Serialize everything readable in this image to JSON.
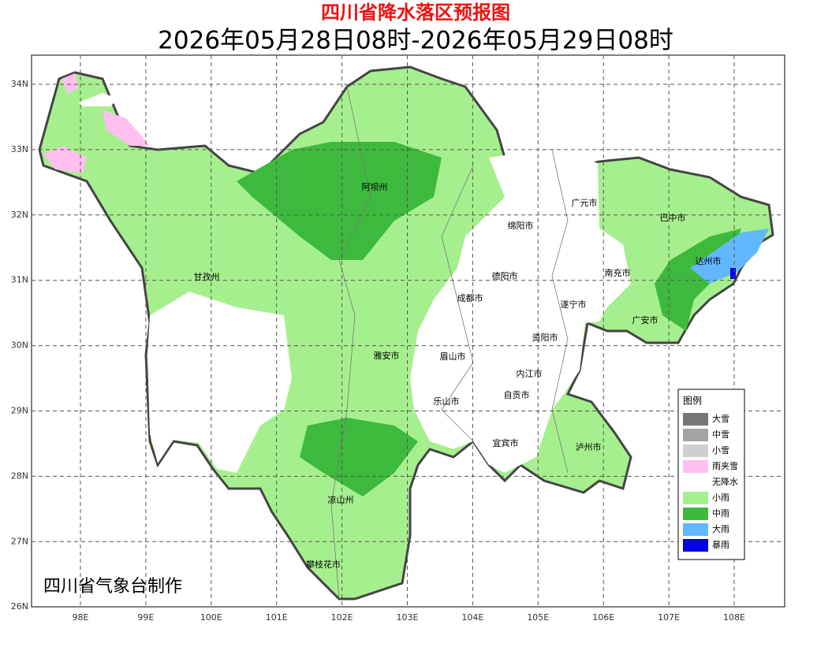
{
  "header": {
    "title": "四川省降水落区预报图",
    "subtitle": "2026年05月28日08时-2026年05月29日08时"
  },
  "map": {
    "lat_ticks": [
      "34N",
      "33N",
      "32N",
      "31N",
      "30N",
      "29N",
      "28N",
      "27N",
      "26N"
    ],
    "lon_ticks": [
      "98E",
      "99E",
      "100E",
      "101E",
      "102E",
      "103E",
      "104E",
      "105E",
      "106E",
      "107E",
      "108E"
    ],
    "places": [
      {
        "label": "阿坝州"
      },
      {
        "label": "甘孜州"
      },
      {
        "label": "广元市"
      },
      {
        "label": "巴中市"
      },
      {
        "label": "绵阳市"
      },
      {
        "label": "达州市"
      },
      {
        "label": "德阳市"
      },
      {
        "label": "南充市"
      },
      {
        "label": "成都市"
      },
      {
        "label": "遂宁市"
      },
      {
        "label": "广安市"
      },
      {
        "label": "资阳市"
      },
      {
        "label": "雅安市"
      },
      {
        "label": "眉山市"
      },
      {
        "label": "内江市"
      },
      {
        "label": "自贡市"
      },
      {
        "label": "乐山市"
      },
      {
        "label": "宜宾市"
      },
      {
        "label": "泸州市"
      },
      {
        "label": "凉山州"
      },
      {
        "label": "攀枝花市"
      }
    ]
  },
  "legend": {
    "title": "图例",
    "items": [
      {
        "label": "大雪",
        "color": "#767676"
      },
      {
        "label": "中雪",
        "color": "#a3a3a3"
      },
      {
        "label": "小雪",
        "color": "#cfcfcf"
      },
      {
        "label": "雨夹雪",
        "color": "#ffc0f0"
      },
      {
        "label": "无降水",
        "color": "#ffffff"
      },
      {
        "label": "小雨",
        "color": "#a6ef8e"
      },
      {
        "label": "中雨",
        "color": "#3dba3d"
      },
      {
        "label": "大雨",
        "color": "#62b8ff"
      },
      {
        "label": "暴雨",
        "color": "#0000e6"
      }
    ]
  },
  "footer": "四川省气象台制作"
}
